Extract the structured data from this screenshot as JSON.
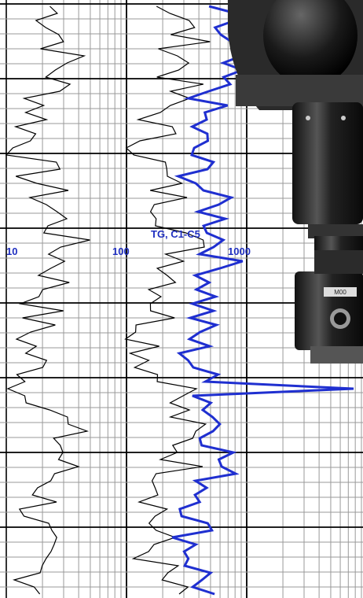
{
  "scale_labels": [
    "10",
    "100",
    "1000"
  ],
  "curve_label": "TG, C1-C5",
  "device_label": "M00"
}
